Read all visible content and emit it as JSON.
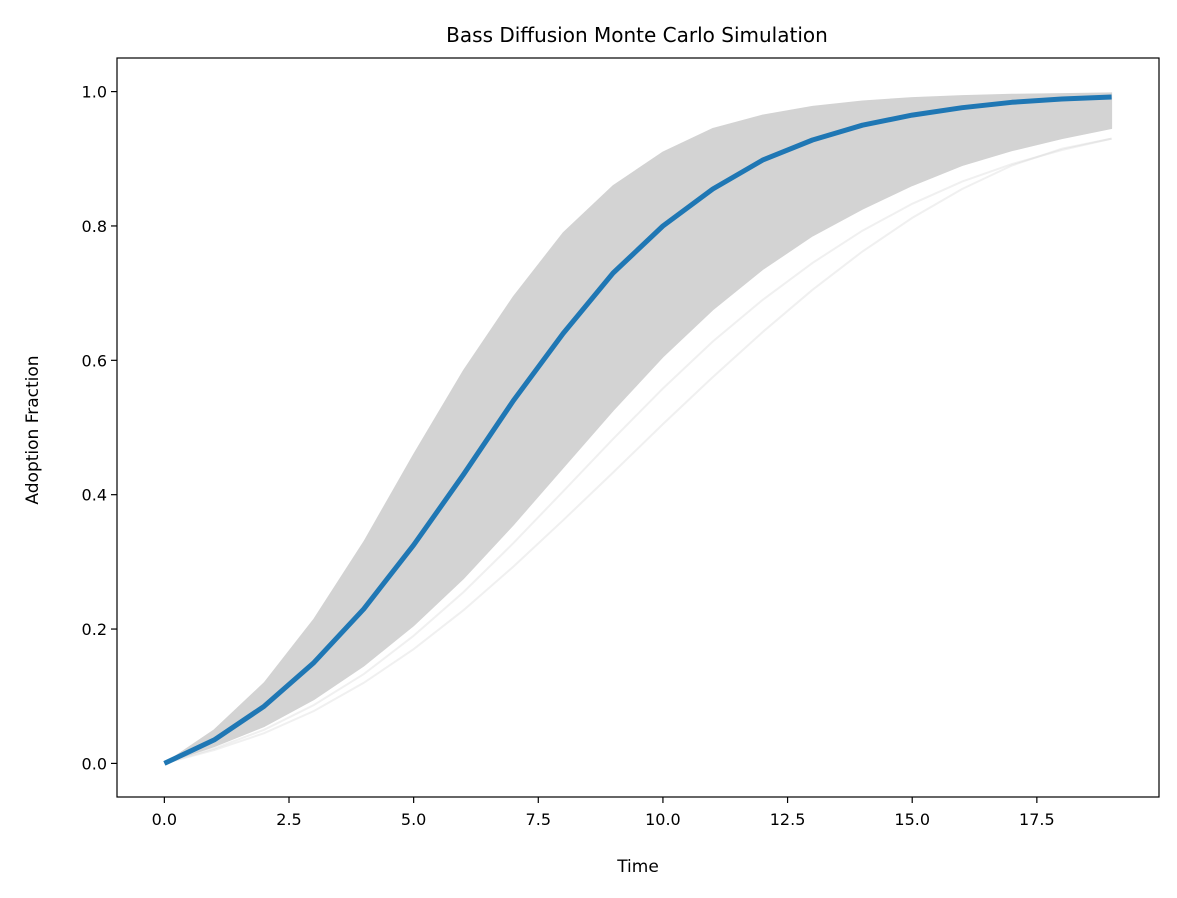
{
  "chart_data": {
    "type": "line",
    "title": "Bass Diffusion Monte Carlo Simulation",
    "xlabel": "Time",
    "ylabel": "Adoption Fraction",
    "xlim": [
      -0.95,
      19.95
    ],
    "ylim": [
      -0.05,
      1.05
    ],
    "xticks": [
      0.0,
      2.5,
      5.0,
      7.5,
      10.0,
      12.5,
      15.0,
      17.5
    ],
    "xtick_labels": [
      "0.0",
      "2.5",
      "5.0",
      "7.5",
      "10.0",
      "12.5",
      "15.0",
      "17.5"
    ],
    "yticks": [
      0.0,
      0.2,
      0.4,
      0.6,
      0.8,
      1.0
    ],
    "ytick_labels": [
      "0.0",
      "0.2",
      "0.4",
      "0.6",
      "0.8",
      "1.0"
    ],
    "grid": false,
    "legend": "none",
    "x": [
      0,
      1,
      2,
      3,
      4,
      5,
      6,
      7,
      8,
      9,
      10,
      11,
      12,
      13,
      14,
      15,
      16,
      17,
      18,
      19
    ],
    "mean_series": {
      "color": "#1f77b4",
      "values": [
        0.0,
        0.035,
        0.085,
        0.15,
        0.23,
        0.325,
        0.43,
        0.54,
        0.64,
        0.73,
        0.8,
        0.855,
        0.898,
        0.928,
        0.95,
        0.965,
        0.976,
        0.984,
        0.989,
        0.992
      ]
    },
    "simulation_band": {
      "color": "#d3d3d3",
      "upper": [
        0.0,
        0.05,
        0.12,
        0.215,
        0.33,
        0.46,
        0.585,
        0.695,
        0.79,
        0.86,
        0.91,
        0.945,
        0.965,
        0.978,
        0.986,
        0.991,
        0.994,
        0.996,
        0.997,
        0.998
      ],
      "lower": [
        0.0,
        0.025,
        0.055,
        0.095,
        0.145,
        0.205,
        0.275,
        0.355,
        0.44,
        0.525,
        0.605,
        0.675,
        0.735,
        0.785,
        0.825,
        0.86,
        0.89,
        0.912,
        0.93,
        0.945
      ]
    },
    "outlier_runs": [
      {
        "color": "#d3d3d3",
        "values": [
          0.0,
          0.02,
          0.045,
          0.078,
          0.12,
          0.17,
          0.228,
          0.293,
          0.362,
          0.433,
          0.505,
          0.575,
          0.642,
          0.705,
          0.762,
          0.812,
          0.855,
          0.89,
          0.915,
          0.93
        ]
      },
      {
        "color": "#d3d3d3",
        "values": [
          0.0,
          0.022,
          0.05,
          0.087,
          0.133,
          0.19,
          0.255,
          0.328,
          0.405,
          0.483,
          0.558,
          0.628,
          0.69,
          0.745,
          0.793,
          0.833,
          0.866,
          0.892,
          0.913,
          0.93
        ]
      }
    ]
  }
}
